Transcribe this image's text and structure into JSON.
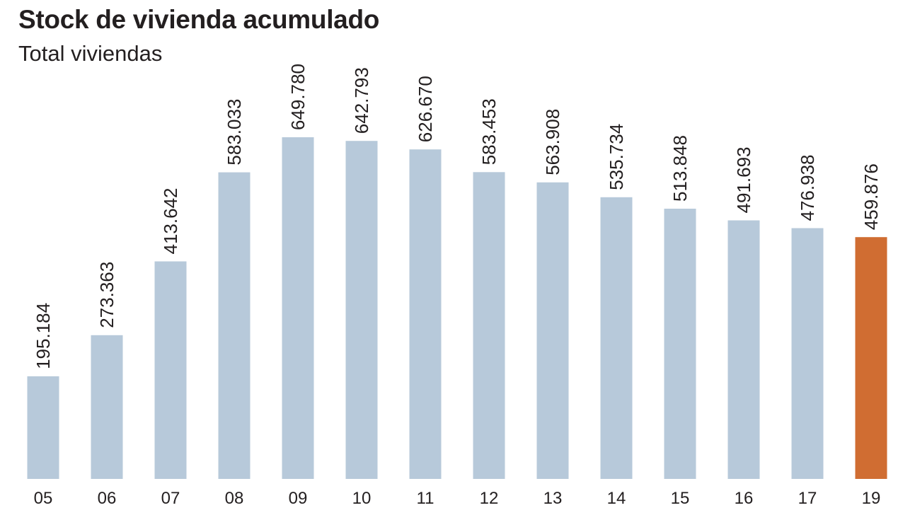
{
  "chart_data": {
    "type": "bar",
    "title": "Stock de vivienda acumulado",
    "subtitle": "Total viviendas",
    "categories": [
      "05",
      "06",
      "07",
      "08",
      "09",
      "10",
      "11",
      "12",
      "13",
      "14",
      "15",
      "16",
      "17",
      "19"
    ],
    "values": [
      195184,
      273363,
      413642,
      583033,
      649780,
      642793,
      626670,
      583453,
      563908,
      535734,
      513848,
      491693,
      476938,
      459876
    ],
    "value_labels": [
      "195.184",
      "273.363",
      "413.642",
      "583.033",
      "649.780",
      "642.793",
      "626.670",
      "583.453",
      "563.908",
      "535.734",
      "513.848",
      "491.693",
      "476.938",
      "459.876"
    ],
    "ylim": [
      0,
      649780
    ],
    "grid": false,
    "colors": {
      "default": "#b7c9da",
      "highlight": "#d06d32",
      "text": "#231f20"
    },
    "highlight_index": 13
  }
}
